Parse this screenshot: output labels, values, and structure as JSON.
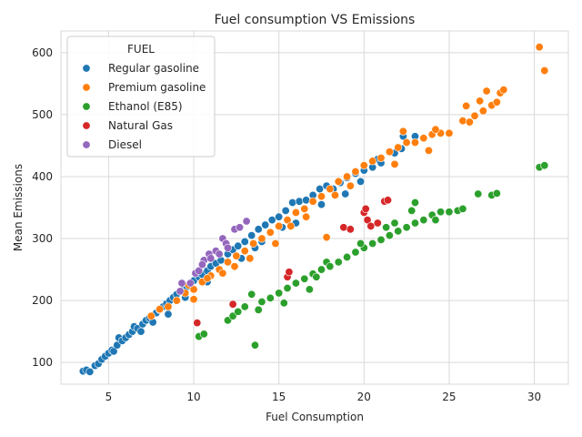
{
  "chart_data": {
    "type": "scatter",
    "title": "Fuel consumption VS Emissions",
    "xlabel": "Fuel Consumption",
    "ylabel": "Mean Emissions",
    "xlim": [
      2.2,
      32.0
    ],
    "ylim": [
      65,
      635
    ],
    "x_ticks": [
      5,
      10,
      15,
      20,
      25,
      30
    ],
    "y_ticks": [
      100,
      200,
      300,
      400,
      500,
      600
    ],
    "grid": true,
    "legend": {
      "title": "FUEL",
      "placement": "top-left"
    },
    "series": [
      {
        "name": "Regular gasoline",
        "color": "#1f77b4",
        "points": [
          [
            3.5,
            86
          ],
          [
            3.7,
            88
          ],
          [
            3.9,
            85
          ],
          [
            4.2,
            95
          ],
          [
            4.4,
            98
          ],
          [
            4.6,
            105
          ],
          [
            4.8,
            110
          ],
          [
            5.0,
            115
          ],
          [
            5.2,
            120
          ],
          [
            5.3,
            118
          ],
          [
            5.5,
            128
          ],
          [
            5.6,
            140
          ],
          [
            5.8,
            135
          ],
          [
            6.0,
            140
          ],
          [
            6.2,
            145
          ],
          [
            6.4,
            150
          ],
          [
            6.5,
            158
          ],
          [
            6.7,
            155
          ],
          [
            7.0,
            162
          ],
          [
            7.2,
            168
          ],
          [
            7.4,
            172
          ],
          [
            7.5,
            175
          ],
          [
            7.8,
            180
          ],
          [
            8.0,
            185
          ],
          [
            8.2,
            190
          ],
          [
            8.4,
            195
          ],
          [
            8.6,
            200
          ],
          [
            8.8,
            205
          ],
          [
            9.0,
            210
          ],
          [
            9.2,
            215
          ],
          [
            9.4,
            218
          ],
          [
            9.6,
            222
          ],
          [
            9.8,
            228
          ],
          [
            10.0,
            232
          ],
          [
            10.3,
            238
          ],
          [
            10.5,
            242
          ],
          [
            10.8,
            248
          ],
          [
            11.0,
            255
          ],
          [
            11.3,
            260
          ],
          [
            11.6,
            265
          ],
          [
            12.0,
            275
          ],
          [
            12.3,
            282
          ],
          [
            12.6,
            288
          ],
          [
            13.0,
            295
          ],
          [
            13.4,
            305
          ],
          [
            13.8,
            315
          ],
          [
            14.2,
            322
          ],
          [
            14.6,
            330
          ],
          [
            15.0,
            335
          ],
          [
            15.4,
            345
          ],
          [
            15.8,
            358
          ],
          [
            16.2,
            360
          ],
          [
            16.6,
            362
          ],
          [
            17.0,
            370
          ],
          [
            17.4,
            380
          ],
          [
            17.8,
            385
          ],
          [
            18.2,
            380
          ],
          [
            18.6,
            390
          ],
          [
            19.0,
            398
          ],
          [
            19.5,
            405
          ],
          [
            20.0,
            410
          ],
          [
            20.8,
            428
          ],
          [
            21.0,
            422
          ],
          [
            21.8,
            438
          ],
          [
            22.2,
            445
          ],
          [
            22.3,
            465
          ],
          [
            23.0,
            465
          ],
          [
            8.5,
            178
          ],
          [
            9.5,
            205
          ],
          [
            11.5,
            250
          ],
          [
            12.8,
            268
          ],
          [
            14.0,
            295
          ],
          [
            16.0,
            325
          ],
          [
            17.5,
            355
          ],
          [
            18.9,
            372
          ],
          [
            10.8,
            230
          ],
          [
            7.6,
            165
          ],
          [
            6.9,
            150
          ],
          [
            13.6,
            285
          ],
          [
            15.2,
            318
          ],
          [
            19.8,
            392
          ],
          [
            20.5,
            415
          ]
        ]
      },
      {
        "name": "Premium gasoline",
        "color": "#ff7f0e",
        "points": [
          [
            7.5,
            175
          ],
          [
            8.0,
            186
          ],
          [
            8.5,
            190
          ],
          [
            9.0,
            200
          ],
          [
            9.5,
            212
          ],
          [
            9.7,
            225
          ],
          [
            10.0,
            218
          ],
          [
            10.5,
            230
          ],
          [
            11.0,
            240
          ],
          [
            11.5,
            250
          ],
          [
            12.0,
            262
          ],
          [
            12.5,
            272
          ],
          [
            13.0,
            280
          ],
          [
            13.5,
            292
          ],
          [
            14.0,
            300
          ],
          [
            14.5,
            310
          ],
          [
            15.0,
            320
          ],
          [
            15.5,
            330
          ],
          [
            16.0,
            342
          ],
          [
            16.5,
            348
          ],
          [
            17.0,
            360
          ],
          [
            17.5,
            368
          ],
          [
            18.0,
            380
          ],
          [
            18.5,
            392
          ],
          [
            19.0,
            400
          ],
          [
            19.5,
            408
          ],
          [
            20.0,
            418
          ],
          [
            20.5,
            425
          ],
          [
            21.0,
            430
          ],
          [
            21.5,
            440
          ],
          [
            22.0,
            447
          ],
          [
            22.5,
            455
          ],
          [
            22.3,
            473
          ],
          [
            23.0,
            455
          ],
          [
            23.5,
            462
          ],
          [
            24.0,
            468
          ],
          [
            24.5,
            470
          ],
          [
            25.0,
            470
          ],
          [
            25.8,
            490
          ],
          [
            26.0,
            514
          ],
          [
            26.2,
            488
          ],
          [
            26.5,
            498
          ],
          [
            26.8,
            522
          ],
          [
            27.0,
            506
          ],
          [
            27.2,
            538
          ],
          [
            27.5,
            515
          ],
          [
            27.8,
            520
          ],
          [
            28.0,
            535
          ],
          [
            28.2,
            540
          ],
          [
            30.3,
            609
          ],
          [
            30.6,
            571
          ],
          [
            17.8,
            302
          ],
          [
            10.0,
            202
          ],
          [
            10.8,
            236
          ],
          [
            12.4,
            255
          ],
          [
            14.8,
            292
          ],
          [
            16.6,
            335
          ],
          [
            18.3,
            370
          ],
          [
            19.2,
            385
          ],
          [
            21.8,
            420
          ],
          [
            23.8,
            442
          ],
          [
            24.2,
            476
          ],
          [
            15.7,
            320
          ],
          [
            13.3,
            268
          ],
          [
            11.7,
            244
          ]
        ]
      },
      {
        "name": "Ethanol (E85)",
        "color": "#2ca02c",
        "points": [
          [
            10.3,
            142
          ],
          [
            10.6,
            146
          ],
          [
            12.0,
            168
          ],
          [
            12.3,
            175
          ],
          [
            12.6,
            182
          ],
          [
            13.0,
            190
          ],
          [
            13.4,
            210
          ],
          [
            13.6,
            128
          ],
          [
            14.0,
            198
          ],
          [
            14.5,
            204
          ],
          [
            15.0,
            212
          ],
          [
            15.5,
            220
          ],
          [
            16.0,
            228
          ],
          [
            16.5,
            235
          ],
          [
            17.0,
            243
          ],
          [
            17.5,
            250
          ],
          [
            17.8,
            262
          ],
          [
            18.0,
            255
          ],
          [
            18.5,
            262
          ],
          [
            19.0,
            270
          ],
          [
            19.5,
            278
          ],
          [
            20.0,
            285
          ],
          [
            20.5,
            292
          ],
          [
            21.0,
            298
          ],
          [
            21.3,
            318
          ],
          [
            21.5,
            305
          ],
          [
            22.0,
            312
          ],
          [
            22.5,
            318
          ],
          [
            23.0,
            325
          ],
          [
            23.0,
            358
          ],
          [
            23.5,
            330
          ],
          [
            24.0,
            338
          ],
          [
            24.5,
            343
          ],
          [
            25.0,
            343
          ],
          [
            25.5,
            345
          ],
          [
            25.8,
            348
          ],
          [
            26.7,
            372
          ],
          [
            27.5,
            370
          ],
          [
            27.8,
            373
          ],
          [
            30.3,
            415
          ],
          [
            30.6,
            418
          ],
          [
            22.8,
            345
          ],
          [
            21.8,
            325
          ],
          [
            15.3,
            196
          ],
          [
            17.2,
            238
          ],
          [
            19.8,
            292
          ],
          [
            24.2,
            330
          ],
          [
            13.8,
            185
          ],
          [
            16.8,
            218
          ]
        ]
      },
      {
        "name": "Natural Gas",
        "color": "#d62728",
        "points": [
          [
            10.2,
            164
          ],
          [
            12.3,
            194
          ],
          [
            15.5,
            238
          ],
          [
            15.6,
            246
          ],
          [
            18.8,
            318
          ],
          [
            19.2,
            315
          ],
          [
            20.0,
            342
          ],
          [
            20.1,
            348
          ],
          [
            20.2,
            330
          ],
          [
            20.4,
            320
          ],
          [
            20.8,
            325
          ],
          [
            21.2,
            360
          ],
          [
            21.4,
            362
          ]
        ]
      },
      {
        "name": "Diesel",
        "color": "#9467bd",
        "points": [
          [
            9.2,
            215
          ],
          [
            9.3,
            228
          ],
          [
            9.8,
            228
          ],
          [
            10.1,
            244
          ],
          [
            10.3,
            248
          ],
          [
            10.6,
            265
          ],
          [
            10.9,
            275
          ],
          [
            11.0,
            268
          ],
          [
            11.3,
            280
          ],
          [
            11.7,
            300
          ],
          [
            11.9,
            292
          ],
          [
            12.4,
            315
          ],
          [
            12.7,
            318
          ],
          [
            13.1,
            328
          ],
          [
            12.0,
            285
          ],
          [
            10.5,
            258
          ],
          [
            11.5,
            275
          ]
        ]
      }
    ]
  }
}
